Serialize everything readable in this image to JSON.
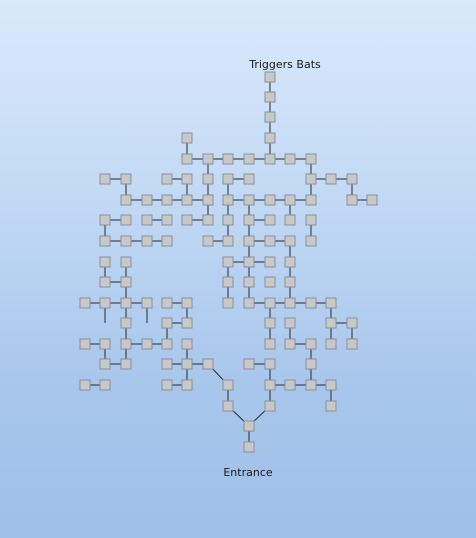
{
  "labels": {
    "top": "Triggers Bats",
    "bottom": "Entrance"
  },
  "colors": {
    "node_fill": "#c8c8c8",
    "node_border": "#8a9097",
    "edge": "#1e2a36"
  }
}
